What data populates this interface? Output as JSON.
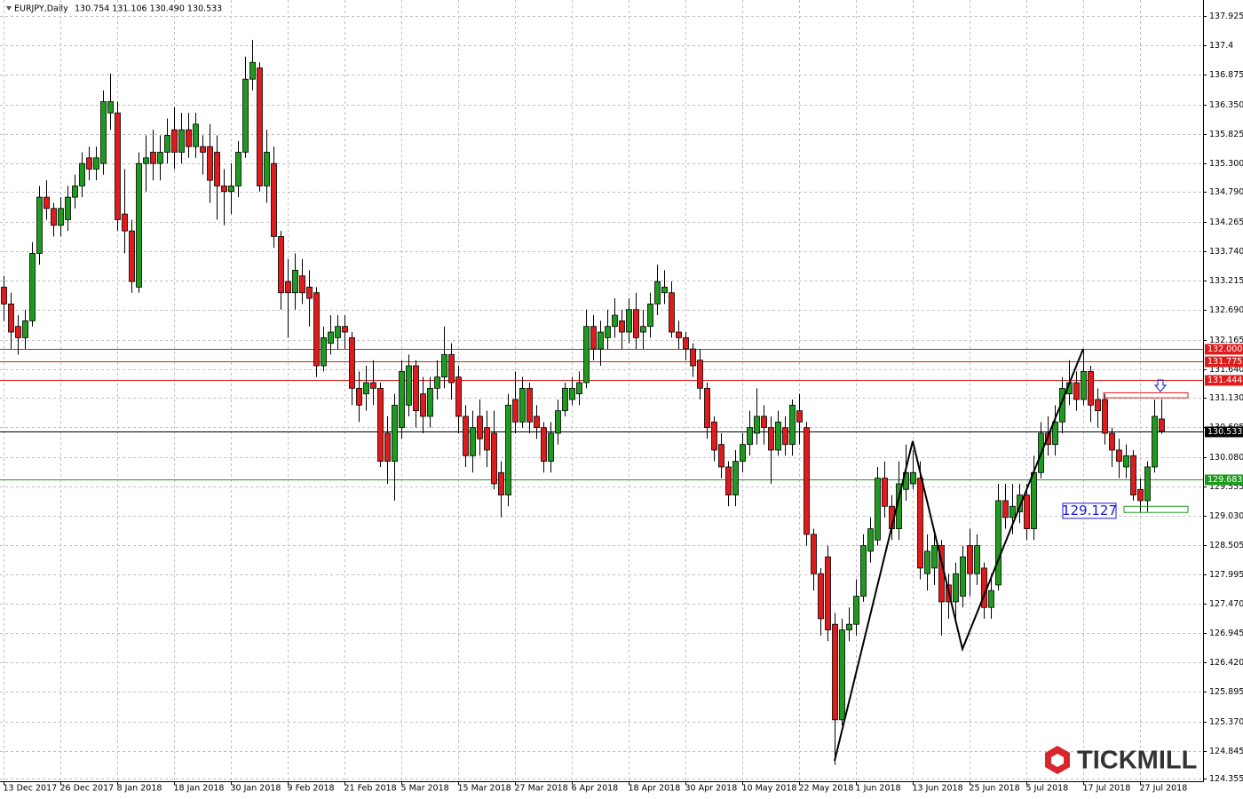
{
  "chart_data": {
    "type": "candlestick",
    "title": "EURJPY,Daily",
    "header_values": "130.754 131.106 130.490 130.533",
    "categories": [
      "13 Dec 2017",
      null,
      null,
      null,
      null,
      null,
      null,
      null,
      "26 Dec 2017",
      null,
      null,
      null,
      null,
      null,
      null,
      null,
      "8 Jan 2018",
      null,
      null,
      null,
      null,
      null,
      null,
      null,
      "18 Jan 2018",
      null,
      null,
      null,
      null,
      null,
      null,
      null,
      "30 Jan 2018",
      null,
      null,
      null,
      null,
      null,
      null,
      null,
      "9 Feb 2018",
      null,
      null,
      null,
      null,
      null,
      null,
      null,
      "21 Feb 2018",
      null,
      null,
      null,
      null,
      null,
      null,
      null,
      "5 Mar 2018",
      null,
      null,
      null,
      null,
      null,
      null,
      null,
      "15 Mar 2018",
      null,
      null,
      null,
      null,
      null,
      null,
      null,
      "27 Mar 2018",
      null,
      null,
      null,
      null,
      null,
      null,
      null,
      "6 Apr 2018",
      null,
      null,
      null,
      null,
      null,
      null,
      null,
      "18 Apr 2018",
      null,
      null,
      null,
      null,
      null,
      null,
      null,
      "30 Apr 2018",
      null,
      null,
      null,
      null,
      null,
      null,
      null,
      "10 May 2018",
      null,
      null,
      null,
      null,
      null,
      null,
      null,
      "22 May 2018",
      null,
      null,
      null,
      null,
      null,
      null,
      null,
      "1 Jun 2018",
      null,
      null,
      null,
      null,
      null,
      null,
      null,
      "13 Jun 2018",
      null,
      null,
      null,
      null,
      null,
      null,
      null,
      "25 Jun 2018",
      null,
      null,
      null,
      null,
      null,
      null,
      null,
      "5 Jul 2018",
      null,
      null,
      null,
      null,
      null,
      null,
      null,
      "17 Jul 2018",
      null,
      null,
      null,
      null,
      null,
      null,
      null,
      "27 Jul 2018",
      null,
      null,
      null
    ],
    "open": [
      133.1,
      132.8,
      132.4,
      132.2,
      132.5,
      133.7,
      134.7,
      134.5,
      134.2,
      134.3,
      134.7,
      134.9,
      135.4,
      135.2,
      135.3,
      136.2,
      136.2,
      134.4,
      134.1,
      133.1,
      135.3,
      135.5,
      135.3,
      135.5,
      135.9,
      135.5,
      135.9,
      135.6,
      135.6,
      135.6,
      135.5,
      134.9,
      134.8,
      134.9,
      135.5,
      136.8,
      137.0,
      134.9,
      135.3,
      134.0,
      133.2,
      133.0,
      133.3,
      133.1,
      133.0,
      131.7,
      132.1,
      132.2,
      132.4,
      132.2,
      131.3,
      131.2,
      131.4,
      131.3,
      130.5,
      130.0,
      130.6,
      131.0,
      131.7,
      131.2,
      130.8,
      131.3,
      131.5,
      131.9,
      131.5,
      130.8,
      130.1,
      130.8,
      130.6,
      130.5,
      129.8,
      129.4,
      131.1,
      130.7,
      131.3,
      130.8,
      130.6,
      130.0,
      130.5,
      130.9,
      131.1,
      131.2,
      131.4,
      132.4,
      132.0,
      132.2,
      132.4,
      132.5,
      132.3,
      132.7,
      132.3,
      132.4,
      132.8,
      133.0,
      133.0,
      132.3,
      132.2,
      132.0,
      131.8,
      131.3,
      130.7,
      130.3,
      129.9,
      129.4,
      130.0,
      130.3,
      130.5,
      130.8,
      130.6,
      130.2,
      130.6,
      130.3,
      130.9,
      130.6,
      128.7,
      128.0,
      128.3,
      127.1,
      125.4,
      127.0,
      127.1,
      127.6,
      128.4,
      128.6,
      129.7,
      129.2,
      128.8,
      129.5,
      129.6,
      129.7,
      128.0,
      128.1,
      128.5,
      127.8,
      127.5,
      127.6,
      128.5,
      128.0,
      128.1,
      127.4,
      127.8,
      129.3,
      129.0,
      129.1,
      129.4,
      128.8,
      129.8,
      130.5,
      130.3,
      130.7,
      131.2,
      131.4,
      131.1,
      131.6,
      131.1,
      131.1,
      130.5,
      130.2,
      129.9,
      130.1,
      129.5,
      129.3,
      129.9,
      130.754
    ],
    "high": [
      133.3,
      133.0,
      132.6,
      132.7,
      133.9,
      134.9,
      135.0,
      134.6,
      134.7,
      134.9,
      135.1,
      135.5,
      135.6,
      135.6,
      136.6,
      136.9,
      136.4,
      135.2,
      134.3,
      135.5,
      135.8,
      135.9,
      135.8,
      136.1,
      136.3,
      136.2,
      136.2,
      136.2,
      135.8,
      136.0,
      135.8,
      135.2,
      135.3,
      135.7,
      137.2,
      137.5,
      137.1,
      135.9,
      135.6,
      134.1,
      133.6,
      133.7,
      133.6,
      133.4,
      133.1,
      132.4,
      132.6,
      132.6,
      132.6,
      132.3,
      131.6,
      131.7,
      131.8,
      131.4,
      130.8,
      131.2,
      131.8,
      131.9,
      131.8,
      131.5,
      131.5,
      131.8,
      132.4,
      132.1,
      131.7,
      131.0,
      130.9,
      131.1,
      130.9,
      130.9,
      130.0,
      131.2,
      131.6,
      131.5,
      131.4,
      131.0,
      130.7,
      130.7,
      131.1,
      131.4,
      131.5,
      131.6,
      132.7,
      132.6,
      132.5,
      132.7,
      132.9,
      132.7,
      132.9,
      133.0,
      132.7,
      133.0,
      133.5,
      133.4,
      133.2,
      132.5,
      132.3,
      132.1,
      132.0,
      131.4,
      130.8,
      130.5,
      130.0,
      130.2,
      130.5,
      130.9,
      131.3,
      131.0,
      130.8,
      130.9,
      130.8,
      131.1,
      131.2,
      130.7,
      128.8,
      128.1,
      128.5,
      127.3,
      127.2,
      127.4,
      127.9,
      128.7,
      129.0,
      129.9,
      130.0,
      129.4,
      130.0,
      130.3,
      130.2,
      130.0,
      128.7,
      128.7,
      128.6,
      128.0,
      128.2,
      128.5,
      128.8,
      128.7,
      128.2,
      128.0,
      129.6,
      129.6,
      129.6,
      129.6,
      129.6,
      130.1,
      130.7,
      130.8,
      131.0,
      131.5,
      131.8,
      131.6,
      132.0,
      131.7,
      131.3,
      131.2,
      130.6,
      130.4,
      130.3,
      130.2,
      129.7,
      130.0,
      131.1,
      131.106
    ],
    "low": [
      132.5,
      132.0,
      131.9,
      132.0,
      132.4,
      133.5,
      134.3,
      134.0,
      134.0,
      134.1,
      134.5,
      134.7,
      135.0,
      135.0,
      135.1,
      135.9,
      134.1,
      133.7,
      133.0,
      133.0,
      134.8,
      135.0,
      135.0,
      135.3,
      135.2,
      135.3,
      135.4,
      135.4,
      135.1,
      134.6,
      134.3,
      134.2,
      134.4,
      134.7,
      135.4,
      136.6,
      134.8,
      134.6,
      133.8,
      132.7,
      132.2,
      132.7,
      132.8,
      132.4,
      131.5,
      131.6,
      131.9,
      132.0,
      132.0,
      131.0,
      130.7,
      130.9,
      131.0,
      129.9,
      129.6,
      129.3,
      130.4,
      130.8,
      130.6,
      130.5,
      130.6,
      131.1,
      131.3,
      131.1,
      130.5,
      129.9,
      129.8,
      130.1,
      129.9,
      129.5,
      129.0,
      129.2,
      130.5,
      130.6,
      130.5,
      130.4,
      129.8,
      129.8,
      130.3,
      130.8,
      131.0,
      131.0,
      131.3,
      131.8,
      131.7,
      132.0,
      132.2,
      132.0,
      132.1,
      132.0,
      132.0,
      132.2,
      132.6,
      132.8,
      132.2,
      132.0,
      131.8,
      131.5,
      131.1,
      130.4,
      130.0,
      129.7,
      129.2,
      129.2,
      129.8,
      130.1,
      130.3,
      130.3,
      129.6,
      130.1,
      130.1,
      130.1,
      130.3,
      128.5,
      127.7,
      126.9,
      126.8,
      124.6,
      125.3,
      126.8,
      126.9,
      127.5,
      128.2,
      128.5,
      129.0,
      128.6,
      128.6,
      129.3,
      129.5,
      127.9,
      127.7,
      127.8,
      126.9,
      127.2,
      127.2,
      127.4,
      127.6,
      127.8,
      127.2,
      127.2,
      127.7,
      128.8,
      128.7,
      128.9,
      128.6,
      128.6,
      129.7,
      130.1,
      130.1,
      130.5,
      131.0,
      130.9,
      131.0,
      130.7,
      130.6,
      130.3,
      129.9,
      129.7,
      129.7,
      129.3,
      129.1,
      129.1,
      129.8,
      130.49
    ],
    "close": [
      132.8,
      132.3,
      132.2,
      132.5,
      133.7,
      134.7,
      134.5,
      134.2,
      134.5,
      134.7,
      134.9,
      135.3,
      135.2,
      135.4,
      136.4,
      136.4,
      134.3,
      134.1,
      133.2,
      135.3,
      135.4,
      135.3,
      135.5,
      135.8,
      135.5,
      135.9,
      135.6,
      136.0,
      135.5,
      135.0,
      134.9,
      134.8,
      134.9,
      135.5,
      136.8,
      137.1,
      134.9,
      135.5,
      134.0,
      133.0,
      133.0,
      133.4,
      133.0,
      132.9,
      131.7,
      132.2,
      132.3,
      132.4,
      132.3,
      131.3,
      131.0,
      131.4,
      131.3,
      130.0,
      130.0,
      131.0,
      131.6,
      131.7,
      130.9,
      130.8,
      131.3,
      131.5,
      131.9,
      131.4,
      130.8,
      130.1,
      130.6,
      130.4,
      130.2,
      129.6,
      129.4,
      131.0,
      130.7,
      131.3,
      130.7,
      130.6,
      130.0,
      130.5,
      130.9,
      131.3,
      131.3,
      131.4,
      132.4,
      132.0,
      132.3,
      132.4,
      132.6,
      132.3,
      132.7,
      132.2,
      132.4,
      132.8,
      133.2,
      133.1,
      132.3,
      132.2,
      132.0,
      131.7,
      131.3,
      130.6,
      130.2,
      129.9,
      129.4,
      130.0,
      130.3,
      130.6,
      130.8,
      130.6,
      130.2,
      130.7,
      130.3,
      131.0,
      130.7,
      128.7,
      128.0,
      127.2,
      127.0,
      125.4,
      127.0,
      127.1,
      127.6,
      128.5,
      128.8,
      129.7,
      129.2,
      128.8,
      129.6,
      129.8,
      129.8,
      128.1,
      128.4,
      128.5,
      127.5,
      127.5,
      128.0,
      128.3,
      128.0,
      128.5,
      127.4,
      127.7,
      129.3,
      129.0,
      129.2,
      129.4,
      128.8,
      129.8,
      130.5,
      130.3,
      130.7,
      131.3,
      131.4,
      131.1,
      131.6,
      131.0,
      130.9,
      130.5,
      130.2,
      130.0,
      130.1,
      129.4,
      129.3,
      129.9,
      130.8,
      130.533
    ],
    "up_color": "#1e9a1e",
    "down_color": "#e01b1b",
    "ylim": [
      124.307,
      138.209
    ],
    "yticks": [
      137.925,
      137.4,
      136.875,
      {
        "value": 136.35,
        "label": "136.350"
      },
      135.825,
      {
        "value": 135.3,
        "label": "135.300"
      },
      {
        "value": 134.79,
        "label": "134.790"
      },
      134.265,
      {
        "value": 133.74,
        "label": "133.740"
      },
      133.215,
      {
        "value": 132.69,
        "label": "132.690"
      },
      132.165,
      {
        "value": 131.64,
        "label": "131.640"
      },
      {
        "value": 131.13,
        "label": "131.130"
      },
      130.605,
      {
        "value": 130.08,
        "label": "130.080"
      },
      129.555,
      {
        "value": 129.03,
        "label": "129.030"
      },
      128.505,
      127.995,
      {
        "value": 127.47,
        "label": "127.470"
      },
      126.945,
      {
        "value": 126.42,
        "label": "126.420"
      },
      125.895,
      {
        "value": 125.37,
        "label": "125.370"
      },
      124.845,
      124.355
    ],
    "grid": true,
    "levels": [
      {
        "value": 132.0,
        "label": "132.000",
        "color": "#e01b1b"
      },
      {
        "value": 131.775,
        "label": "131.775",
        "color": "#e01b1b"
      },
      {
        "value": 131.444,
        "label": "131.444",
        "color": "#e01b1b"
      },
      {
        "value": 130.533,
        "label": "130.533",
        "color": "#000000"
      },
      {
        "value": 129.683,
        "label": "129.683",
        "color": "#1e9a1e"
      }
    ],
    "zones": [
      {
        "from": 131.22,
        "to": 131.13,
        "color": "#e01b1b"
      },
      {
        "from": 129.2,
        "to": 129.09,
        "color": "#1e9a1e"
      }
    ],
    "annotation": {
      "value": 129.127,
      "label": "129.127",
      "color": "#1a1adb"
    },
    "zigzag": {
      "x": [
        117,
        128,
        135,
        152
      ],
      "values": [
        124.67,
        130.36,
        126.66,
        132.0
      ]
    },
    "logo": "TICKMILL"
  }
}
